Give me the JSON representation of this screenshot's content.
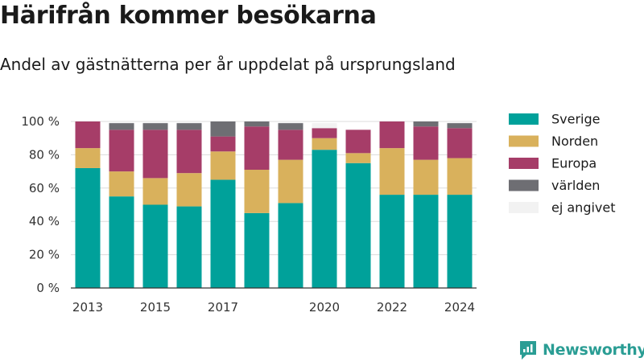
{
  "header": {
    "title": "Härifrån kommer besökarna",
    "subtitle": "Andel av gästnätterna per år uppdelat på ursprungsland"
  },
  "brand": {
    "name": "Newsworthy",
    "color": "#2a9d94"
  },
  "chart_data": {
    "type": "bar",
    "stacked": true,
    "categories": [
      "2013",
      "2014",
      "2015",
      "2016",
      "2017",
      "2018",
      "2019",
      "2020",
      "2021",
      "2022",
      "2023",
      "2024"
    ],
    "x_tick_labels": [
      "2013",
      "",
      "2015",
      "",
      "2017",
      "",
      "",
      "2020",
      "",
      "2022",
      "",
      "2024"
    ],
    "y_ticks": [
      0,
      20,
      40,
      60,
      80,
      100
    ],
    "y_tick_labels": [
      "0 %",
      "20 %",
      "40 %",
      "60 %",
      "80 %",
      "100 %"
    ],
    "ylim": [
      0,
      100
    ],
    "grid": true,
    "legend_position": "right",
    "series": [
      {
        "name": "Sverige",
        "color": "#00a19a",
        "values": [
          72,
          55,
          50,
          49,
          65,
          45,
          51,
          83,
          75,
          56,
          56,
          56
        ]
      },
      {
        "name": "Norden",
        "color": "#d9b15c",
        "values": [
          12,
          15,
          16,
          20,
          17,
          26,
          26,
          7,
          6,
          28,
          21,
          22
        ]
      },
      {
        "name": "Europa",
        "color": "#a63d68",
        "values": [
          16,
          25,
          29,
          26,
          9,
          26,
          18,
          6,
          14,
          16,
          20,
          18
        ]
      },
      {
        "name": "världen",
        "color": "#6e6e73",
        "values": [
          0,
          4,
          4,
          4,
          9,
          3,
          4,
          0,
          0,
          0,
          3,
          3
        ]
      },
      {
        "name": "ej angivet",
        "color": "#f2f2f2",
        "values": [
          0,
          1,
          1,
          1,
          0,
          0,
          1,
          3,
          0,
          0,
          0,
          1
        ]
      }
    ]
  }
}
